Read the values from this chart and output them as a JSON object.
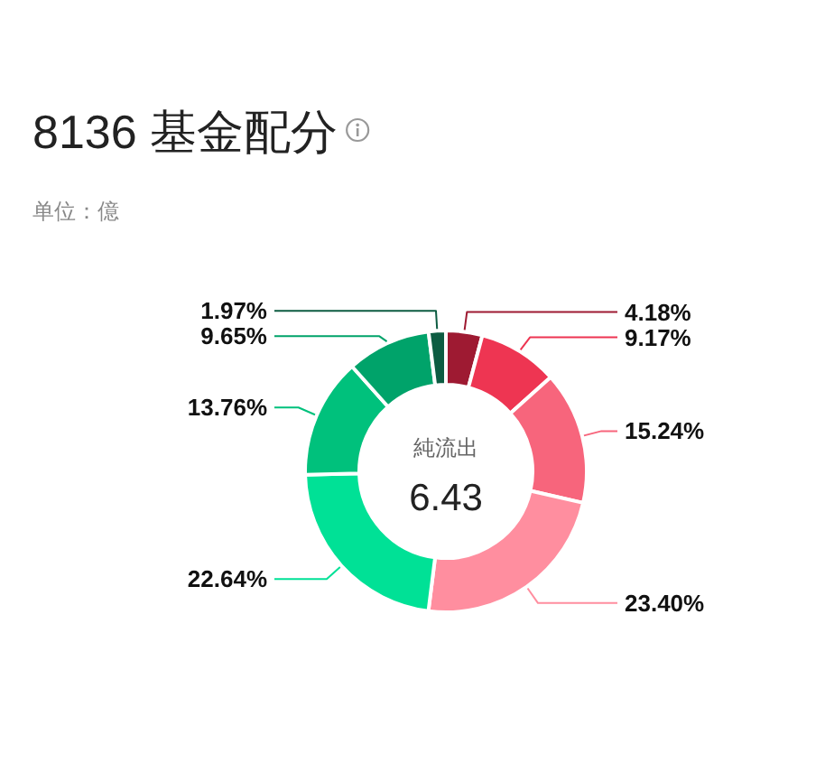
{
  "chart_data": {
    "type": "donut",
    "title": "8136 基金配分",
    "subtitle": "单位：億",
    "categories": [
      null,
      null,
      null,
      null,
      null,
      null,
      null,
      null
    ],
    "values": [
      4.18,
      9.17,
      15.24,
      23.4,
      22.64,
      13.76,
      9.65,
      1.97
    ],
    "colors": [
      "#9e1a32",
      "#ee3552",
      "#f7657c",
      "#ff8e9f",
      "#00e196",
      "#00c17c",
      "#00a36a",
      "#0d5c42"
    ],
    "value_labels": [
      "4.18%",
      "9.17%",
      "15.24%",
      "23.40%",
      "22.64%",
      "13.76%",
      "9.65%",
      "1.97%"
    ],
    "annotations": [
      "純流出",
      "6.43"
    ]
  }
}
